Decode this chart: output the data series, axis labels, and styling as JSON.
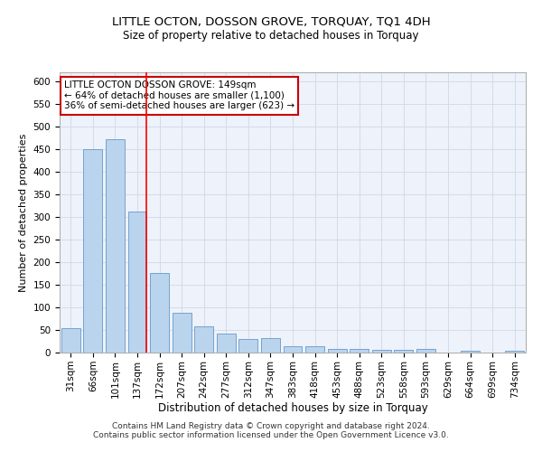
{
  "title": "LITTLE OCTON, DOSSON GROVE, TORQUAY, TQ1 4DH",
  "subtitle": "Size of property relative to detached houses in Torquay",
  "xlabel": "Distribution of detached houses by size in Torquay",
  "ylabel": "Number of detached properties",
  "categories": [
    "31sqm",
    "66sqm",
    "101sqm",
    "137sqm",
    "172sqm",
    "207sqm",
    "242sqm",
    "277sqm",
    "312sqm",
    "347sqm",
    "383sqm",
    "418sqm",
    "453sqm",
    "488sqm",
    "523sqm",
    "558sqm",
    "593sqm",
    "629sqm",
    "664sqm",
    "699sqm",
    "734sqm"
  ],
  "values": [
    55,
    450,
    472,
    312,
    176,
    88,
    58,
    42,
    30,
    32,
    14,
    14,
    9,
    9,
    6,
    6,
    8,
    0,
    4,
    0,
    4
  ],
  "bar_color": "#bad4ed",
  "bar_edge_color": "#6699cc",
  "red_line_x": 3,
  "annotation_text": "LITTLE OCTON DOSSON GROVE: 149sqm\n← 64% of detached houses are smaller (1,100)\n36% of semi-detached houses are larger (623) →",
  "annotation_box_color": "#ffffff",
  "annotation_box_edge_color": "#cc0000",
  "ylim": [
    0,
    620
  ],
  "yticks": [
    0,
    50,
    100,
    150,
    200,
    250,
    300,
    350,
    400,
    450,
    500,
    550,
    600
  ],
  "grid_color": "#d0d8e8",
  "bg_color": "#eef2fa",
  "footer_line1": "Contains HM Land Registry data © Crown copyright and database right 2024.",
  "footer_line2": "Contains public sector information licensed under the Open Government Licence v3.0.",
  "title_fontsize": 9.5,
  "subtitle_fontsize": 8.5,
  "xlabel_fontsize": 8.5,
  "ylabel_fontsize": 8,
  "tick_fontsize": 7.5,
  "annotation_fontsize": 7.5,
  "footer_fontsize": 6.5
}
